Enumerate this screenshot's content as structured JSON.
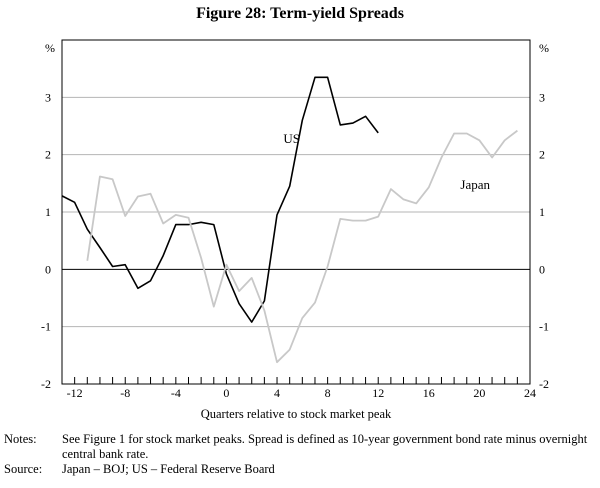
{
  "chart_data": {
    "type": "line",
    "title": "Figure 28: Term-yield Spreads",
    "xlabel": "Quarters relative to stock market peak",
    "ylabel_left": "%",
    "ylabel_right": "%",
    "xlim": [
      -13,
      24
    ],
    "ylim": [
      -2,
      4
    ],
    "x_ticks": [
      -12,
      -8,
      -4,
      0,
      4,
      8,
      12,
      16,
      20,
      24
    ],
    "y_ticks": [
      -2,
      -1,
      0,
      1,
      2,
      3
    ],
    "grid": "horizontal",
    "series": [
      {
        "name": "US",
        "color": "#000000",
        "x": [
          -13,
          -12,
          -11,
          -10,
          -9,
          -8,
          -7,
          -6,
          -5,
          -4,
          -3,
          -2,
          -1,
          0,
          1,
          2,
          3,
          4,
          5,
          6,
          7,
          8,
          9,
          10,
          11,
          12,
          13
        ],
        "values": [
          1.28,
          1.17,
          0.7,
          0.38,
          0.05,
          0.08,
          -0.33,
          -0.2,
          0.24,
          0.78,
          0.78,
          0.82,
          0.78,
          -0.08,
          -0.6,
          -0.92,
          -0.55,
          0.95,
          1.45,
          2.6,
          3.35,
          3.35,
          2.52,
          2.55,
          2.67,
          2.38,
          null
        ]
      },
      {
        "name": "Japan",
        "color": "#c8c8c8",
        "x": [
          -11,
          -10,
          -9,
          -8,
          -7,
          -6,
          -5,
          -4,
          -3,
          -2,
          -1,
          0,
          1,
          2,
          3,
          4,
          5,
          6,
          7,
          8,
          9,
          10,
          11,
          12,
          13,
          14,
          15,
          16,
          17,
          18,
          19,
          20,
          21,
          22,
          23,
          24
        ],
        "values": [
          0.15,
          1.62,
          1.57,
          0.93,
          1.27,
          1.32,
          0.8,
          0.95,
          0.9,
          0.2,
          -0.65,
          0.08,
          -0.38,
          -0.15,
          -0.72,
          -1.62,
          -1.4,
          -0.85,
          -0.58,
          0.05,
          0.88,
          0.85,
          0.85,
          0.92,
          1.4,
          1.22,
          1.15,
          1.43,
          1.95,
          2.37,
          2.37,
          2.25,
          1.95,
          2.25,
          2.42,
          null
        ]
      }
    ],
    "annotations": [
      {
        "text": "US",
        "x": 4.5,
        "y": 2.2
      },
      {
        "text": "Japan",
        "x": 18.5,
        "y": 1.4
      }
    ]
  },
  "notes": {
    "notes_label": "Notes:",
    "notes_text": "See Figure 1 for stock market peaks. Spread is defined as 10-year government bond rate minus overnight central bank rate.",
    "source_label": "Source:",
    "source_text": "Japan – BOJ; US – Federal Reserve Board"
  }
}
